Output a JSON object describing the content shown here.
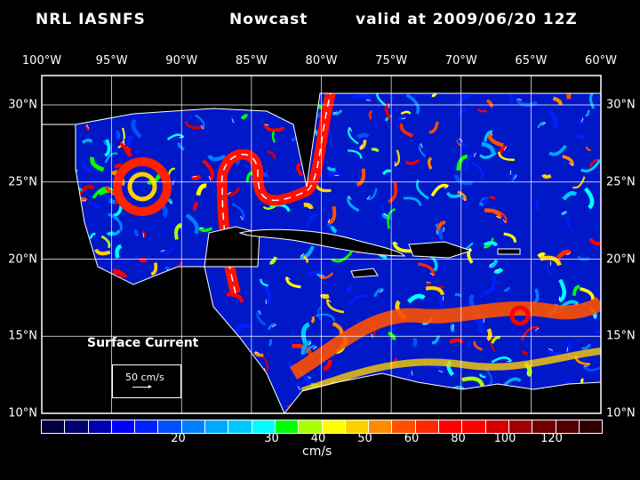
{
  "title": {
    "product": "NRL IASNFS",
    "type": "Nowcast",
    "valid": "valid at 2009/06/20 12Z"
  },
  "lon_labels": [
    "100°W",
    "95°W",
    "90°W",
    "85°W",
    "80°W",
    "75°W",
    "70°W",
    "65°W",
    "60°W"
  ],
  "lat_labels": [
    "30°N",
    "25°N",
    "20°N",
    "15°N",
    "10°N"
  ],
  "field_label": "Surface Current",
  "reference_vector": {
    "label": "50 cm/s",
    "value": 50
  },
  "colorbar": {
    "units": "cm/s",
    "colors": [
      "#000040",
      "#000070",
      "#0000b0",
      "#0000ff",
      "#0020ff",
      "#0050ff",
      "#0080ff",
      "#00a8ff",
      "#00c8ff",
      "#00ffff",
      "#00ff00",
      "#a8ff00",
      "#ffff00",
      "#ffd000",
      "#ff8c00",
      "#ff5000",
      "#ff2800",
      "#ff0000",
      "#ff0000",
      "#d00000",
      "#a00000",
      "#700000",
      "#500000",
      "#300000"
    ],
    "ticks": [
      {
        "label": "20",
        "bin": 6
      },
      {
        "label": "30",
        "bin": 10
      },
      {
        "label": "40",
        "bin": 12
      },
      {
        "label": "50",
        "bin": 14
      },
      {
        "label": "60",
        "bin": 16
      },
      {
        "label": "80",
        "bin": 18
      },
      {
        "label": "100",
        "bin": 20
      },
      {
        "label": "120",
        "bin": 22
      }
    ]
  }
}
